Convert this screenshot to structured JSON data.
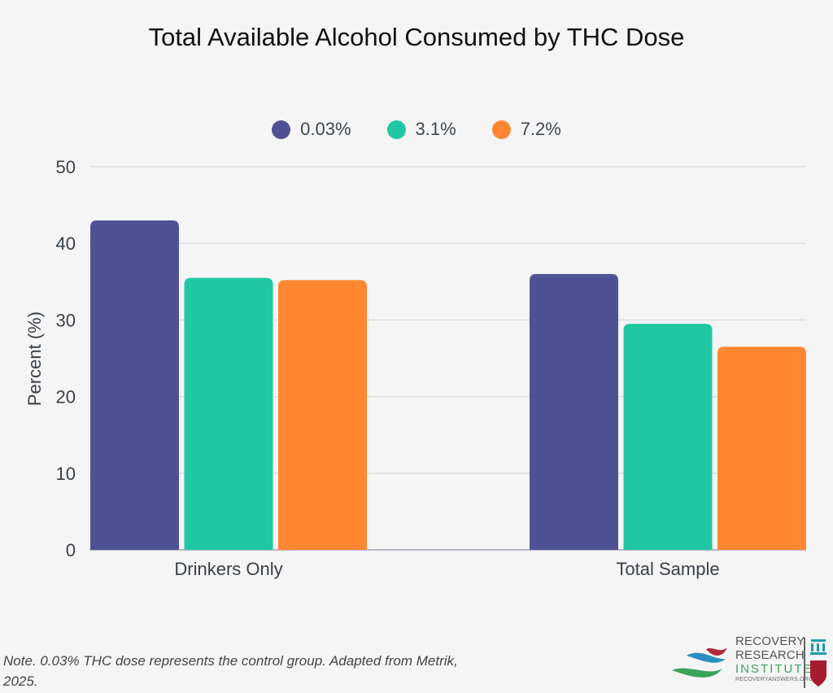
{
  "chart_data": {
    "type": "bar",
    "title": "Total Available Alcohol Consumed by THC Dose",
    "xlabel": "",
    "ylabel": "Percent (%)",
    "ylim": [
      0,
      50
    ],
    "yticks": [
      0,
      10,
      20,
      30,
      40,
      50
    ],
    "grid": true,
    "legend_position": "top-center",
    "categories": [
      "Drinkers Only",
      "Total Sample"
    ],
    "series": [
      {
        "name": "0.03%",
        "color": "#4e5295",
        "values": [
          43.0,
          36.0
        ]
      },
      {
        "name": "3.1%",
        "color": "#20c7a3",
        "values": [
          35.5,
          29.5
        ]
      },
      {
        "name": "7.2%",
        "color": "#ff8731",
        "values": [
          35.2,
          26.5
        ]
      }
    ]
  },
  "note": "Note. 0.03% THC dose represents the control group. Adapted from Metrik, 2025.",
  "logo": {
    "line1": "RECOVERY",
    "line2": "RESEARCH",
    "line3": "INSTITUTE",
    "url": "RECOVERYANSWERS.ORG"
  }
}
